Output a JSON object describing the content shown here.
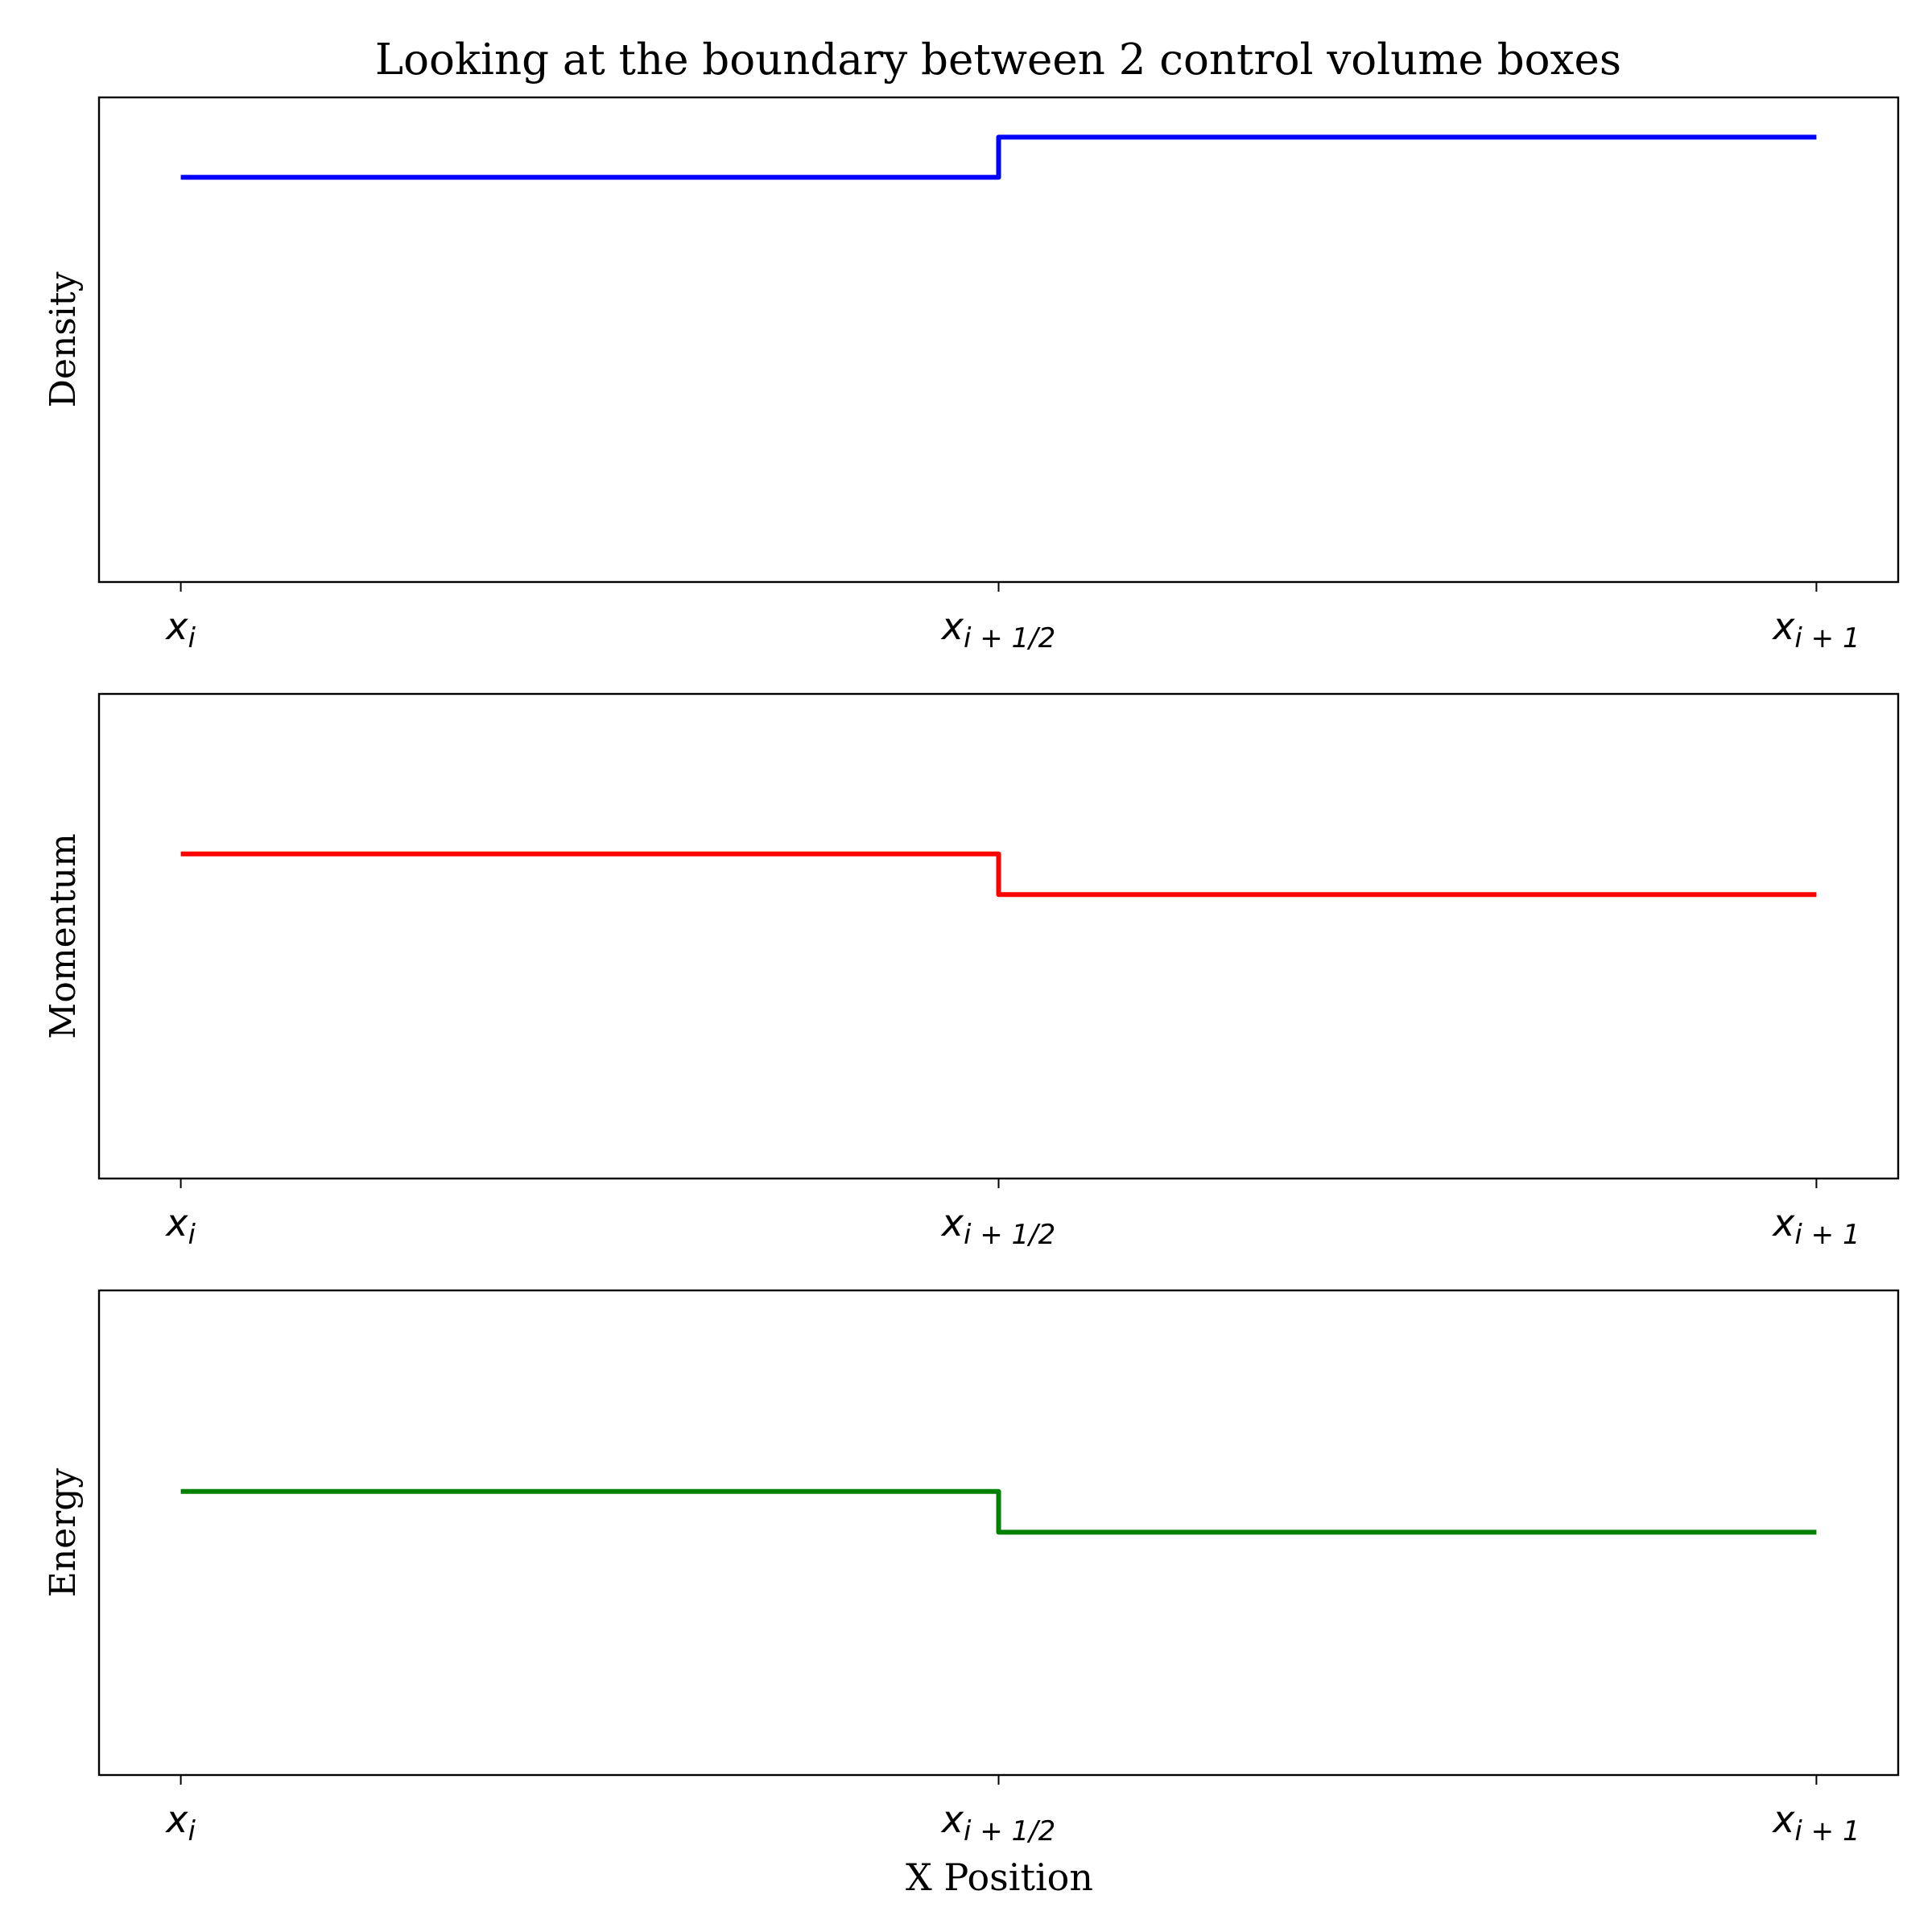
{
  "figure_title": "Looking at the boundary between 2 control volume boxes",
  "chart_data": [
    {
      "type": "line",
      "ylabel": "Density",
      "xlabel": "",
      "color": "#0000ff",
      "x_ticks": [
        {
          "value": 0,
          "base": "x",
          "sub": "i"
        },
        {
          "value": 0.5,
          "base": "x",
          "sub": "i + 1/2"
        },
        {
          "value": 1,
          "base": "x",
          "sub": "i + 1"
        }
      ],
      "xlim": [
        -0.05,
        1.05
      ],
      "ylim": [
        0,
        1
      ],
      "y_ticks_shown": false,
      "step_at": 0.5,
      "series": [
        {
          "x": [
            0,
            0.5,
            0.5,
            1
          ],
          "y": [
            0.835,
            0.835,
            0.918,
            0.918
          ]
        }
      ]
    },
    {
      "type": "line",
      "ylabel": "Momentum",
      "xlabel": "",
      "color": "#ff0000",
      "x_ticks": [
        {
          "value": 0,
          "base": "x",
          "sub": "i"
        },
        {
          "value": 0.5,
          "base": "x",
          "sub": "i + 1/2"
        },
        {
          "value": 1,
          "base": "x",
          "sub": "i + 1"
        }
      ],
      "xlim": [
        -0.05,
        1.05
      ],
      "ylim": [
        0,
        1
      ],
      "y_ticks_shown": false,
      "step_at": 0.5,
      "series": [
        {
          "x": [
            0,
            0.5,
            0.5,
            1
          ],
          "y": [
            0.67,
            0.67,
            0.586,
            0.586
          ]
        }
      ]
    },
    {
      "type": "line",
      "ylabel": "Energy",
      "xlabel": "X Position",
      "color": "#008000",
      "x_ticks": [
        {
          "value": 0,
          "base": "x",
          "sub": "i"
        },
        {
          "value": 0.5,
          "base": "x",
          "sub": "i + 1/2"
        },
        {
          "value": 1,
          "base": "x",
          "sub": "i + 1"
        }
      ],
      "xlim": [
        -0.05,
        1.05
      ],
      "ylim": [
        0,
        1
      ],
      "y_ticks_shown": false,
      "step_at": 0.5,
      "series": [
        {
          "x": [
            0,
            0.5,
            0.5,
            1
          ],
          "y": [
            0.585,
            0.585,
            0.501,
            0.501
          ]
        }
      ]
    }
  ]
}
